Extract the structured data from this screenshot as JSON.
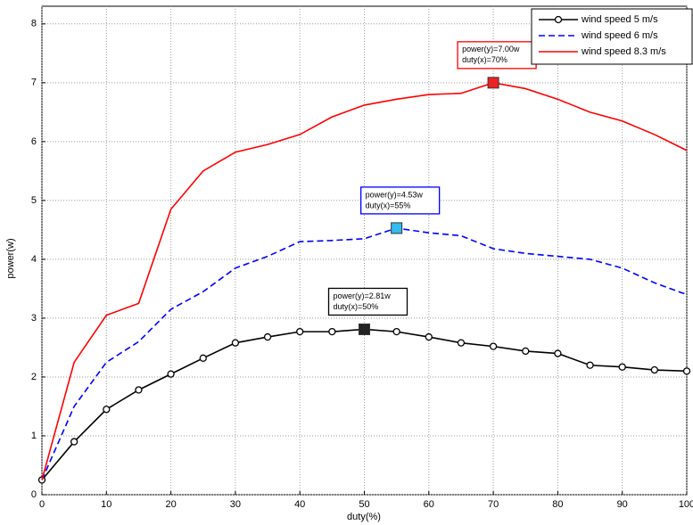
{
  "chart_data": {
    "type": "line",
    "xlabel": "duty(%)",
    "ylabel": "power(w)",
    "x": [
      0,
      5,
      10,
      15,
      20,
      25,
      30,
      35,
      40,
      45,
      50,
      55,
      60,
      65,
      70,
      75,
      80,
      85,
      90,
      95,
      100
    ],
    "series": [
      {
        "name": "wind speed 5 m/s",
        "color": "#000000",
        "style": "solid",
        "marker": "o",
        "values": [
          0.25,
          0.9,
          1.45,
          1.78,
          2.05,
          2.32,
          2.58,
          2.68,
          2.77,
          2.77,
          2.81,
          2.77,
          2.68,
          2.58,
          2.52,
          2.44,
          2.4,
          2.2,
          2.17,
          2.12,
          2.1
        ]
      },
      {
        "name": "wind speed 6 m/s",
        "color": "#0000ff",
        "style": "dashed",
        "marker": "none",
        "values": [
          0.25,
          1.5,
          2.25,
          2.6,
          3.15,
          3.45,
          3.85,
          4.05,
          4.3,
          4.32,
          4.35,
          4.53,
          4.45,
          4.4,
          4.18,
          4.1,
          4.05,
          4.0,
          3.85,
          3.6,
          3.4
        ]
      },
      {
        "name": "wind speed 8.3 m/s",
        "color": "#ff0000",
        "style": "solid",
        "marker": "none",
        "values": [
          0.25,
          2.25,
          3.05,
          3.25,
          4.85,
          5.5,
          5.82,
          5.95,
          6.12,
          6.42,
          6.62,
          6.72,
          6.8,
          6.82,
          7.0,
          6.9,
          6.72,
          6.5,
          6.35,
          6.12,
          5.85
        ]
      }
    ],
    "annotations": [
      {
        "series": 0,
        "index": 10,
        "fill": "#222222",
        "border": "#000000",
        "lines": [
          "power(y)=2.81w",
          "duty(x)=50%"
        ]
      },
      {
        "series": 1,
        "index": 11,
        "fill": "#33bbee",
        "border": "#0000ff",
        "lines": [
          "power(y)=4.53w",
          "duty(x)=55%"
        ]
      },
      {
        "series": 2,
        "index": 14,
        "fill": "#ee2222",
        "border": "#ff0000",
        "lines": [
          "power(y)=7.00w",
          "duty(x)=70%"
        ]
      }
    ],
    "xlim": [
      0,
      100
    ],
    "xticks": [
      0,
      10,
      20,
      30,
      40,
      50,
      60,
      70,
      80,
      90,
      100
    ],
    "ylim": [
      0,
      8.3
    ],
    "yticks": [
      0,
      1,
      2,
      3,
      4,
      5,
      6,
      7,
      8
    ],
    "grid": true,
    "legend": "upper right"
  }
}
